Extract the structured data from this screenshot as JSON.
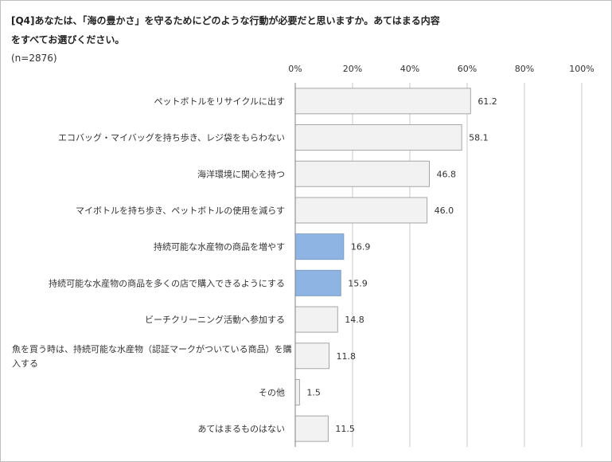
{
  "header": {
    "title_line1": "[Q4]あなたは、「海の豊かさ」を守るためにどのような行動が必要だと思いますか。あてはまる内容",
    "title_line2": "をすべてお選びください。",
    "sample_note": "(n=2876)"
  },
  "chart_data": {
    "type": "bar",
    "orientation": "horizontal",
    "xlim": [
      0,
      100
    ],
    "ticks": [
      0,
      20,
      40,
      60,
      80,
      100
    ],
    "tick_suffix": "%",
    "grid": true,
    "categories": [
      [
        "ペットボトルをリサイクルに出す"
      ],
      [
        "エコバッグ・マイバッグを持ち歩き、レジ袋をもらわない"
      ],
      [
        "海洋環境に関心を持つ"
      ],
      [
        "マイボトルを持ち歩き、ペットボトルの使用を減らす"
      ],
      [
        "持続可能な水産物の商品を増やす"
      ],
      [
        "持続可能な水産物の商品を多くの店で購入できるようにする"
      ],
      [
        "ビーチクリーニング活動へ参加する"
      ],
      [
        "魚を買う時は、持続可能な水産物（認証マークがついている商品）を購",
        "入する"
      ],
      [
        "その他"
      ],
      [
        "あてはまるものはない"
      ]
    ],
    "values": [
      61.2,
      58.1,
      46.8,
      46.0,
      16.9,
      15.9,
      14.8,
      11.8,
      1.5,
      11.5
    ],
    "value_labels": [
      "61.2",
      "58.1",
      "46.8",
      "46.0",
      "16.9",
      "15.9",
      "14.8",
      "11.8",
      "1.5",
      "11.5"
    ],
    "highlight_indices": [
      4,
      5
    ],
    "colors": {
      "bar_fill": "#f2f2f2",
      "bar_stroke": "#a6a6a6",
      "highlight_fill": "#8eb4e3",
      "highlight_stroke": "#7f9fc8",
      "grid": "#c8c8c8",
      "axis": "#808080"
    }
  }
}
